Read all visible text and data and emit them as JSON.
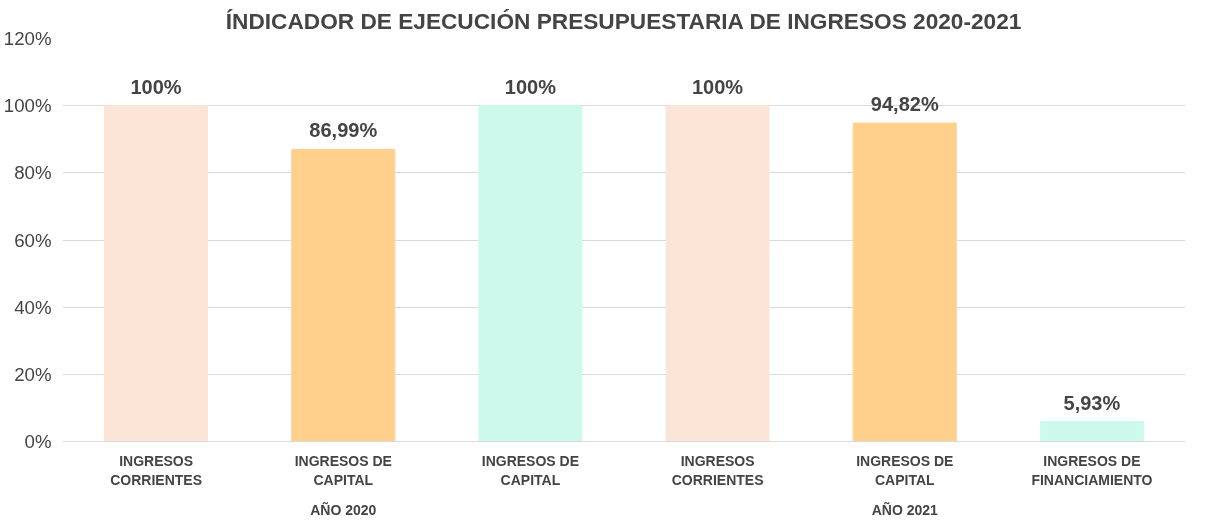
{
  "chart_data": {
    "type": "bar",
    "title": "ÍNDICADOR DE EJECUCIÓN PRESUPUESTARIA DE INGRESOS 2020-2021",
    "categories": [
      "INGRESOS CORRIENTES",
      "INGRESOS DE CAPITAL",
      "INGRESOS DE CAPITAL",
      "INGRESOS CORRIENTES",
      "INGRESOS DE CAPITAL",
      "INGRESOS DE FINANCIAMIENTO"
    ],
    "values": [
      100,
      86.99,
      100,
      100,
      94.82,
      5.93
    ],
    "colors": [
      "#fbe5d6",
      "#ffd08c",
      "#ccf9ec",
      "#fbe5d6",
      "#ffd08c",
      "#ccf9ec"
    ],
    "value_labels": [
      "100%",
      "86,99%",
      "100%",
      "100%",
      "94,82%",
      "5,93%"
    ],
    "annotations": [
      "AÑO 2020",
      "AÑO 2021"
    ],
    "ylim": [
      0,
      120
    ],
    "yticks": [
      {
        "value": 0,
        "label": "0%"
      },
      {
        "value": 20,
        "label": "20%"
      },
      {
        "value": 40,
        "label": "40%"
      },
      {
        "value": 60,
        "label": "60%"
      },
      {
        "value": 80,
        "label": "80%"
      },
      {
        "value": 100,
        "label": "100%"
      },
      {
        "value": 120,
        "label": "120%"
      }
    ],
    "grid": "y"
  }
}
